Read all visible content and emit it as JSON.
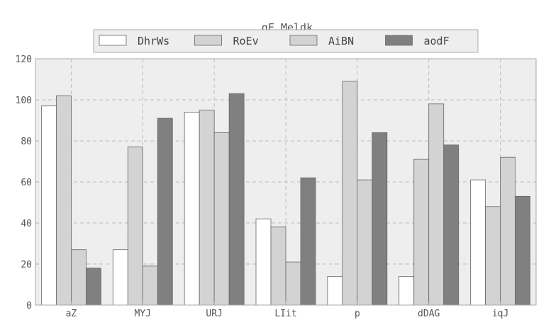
{
  "chart_data": {
    "type": "bar",
    "title": "gF Meldk",
    "xlabel": "",
    "ylabel": "",
    "categories": [
      "aZ",
      "MYJ",
      "URJ",
      "LIit",
      "p",
      "dDAG",
      "iqJ"
    ],
    "series": [
      {
        "name": "DhrWs",
        "color": "#ffffff",
        "values": [
          97,
          27,
          94,
          42,
          14,
          14,
          61
        ]
      },
      {
        "name": "RoEv",
        "color": "#d3d3d3",
        "values": [
          102,
          77,
          95,
          38,
          109,
          71,
          48
        ]
      },
      {
        "name": "AiBN",
        "color": "#d3d3d3",
        "values": [
          27,
          19,
          84,
          21,
          61,
          98,
          72
        ]
      },
      {
        "name": "aodF",
        "color": "#808080",
        "values": [
          18,
          91,
          103,
          62,
          84,
          78,
          53
        ]
      }
    ],
    "ylim": [
      0,
      120
    ],
    "yticks": [
      0,
      20,
      40,
      60,
      80,
      100,
      120
    ],
    "grid": true,
    "legend": "top-center",
    "colors": {
      "plot_background": "#eeeeee",
      "grid": "#bbbbbb",
      "axis": "#aaaaaa",
      "text": "#555555"
    }
  }
}
